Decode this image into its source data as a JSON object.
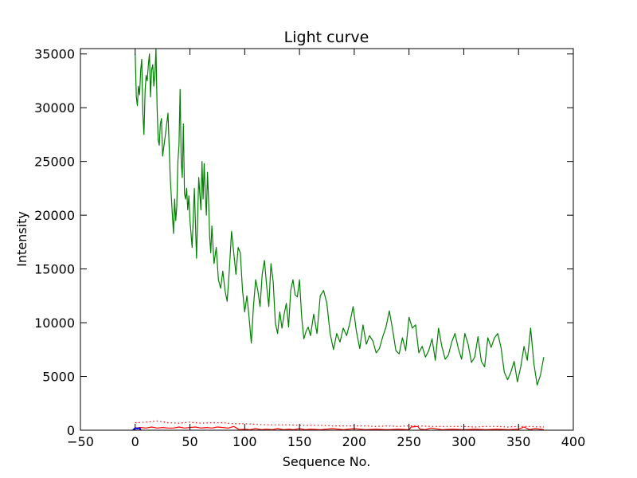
{
  "chart_data": {
    "type": "line",
    "title": "Light curve",
    "xlabel": "Sequence No.",
    "ylabel": "Intensity",
    "xlim": [
      -50,
      400
    ],
    "ylim": [
      0,
      35500
    ],
    "xticks": [
      -50,
      0,
      50,
      100,
      150,
      200,
      250,
      300,
      350,
      400
    ],
    "xtick_labels": [
      "−50",
      "0",
      "50",
      "100",
      "150",
      "200",
      "250",
      "300",
      "350",
      "400"
    ],
    "yticks": [
      0,
      5000,
      10000,
      15000,
      20000,
      25000,
      30000,
      35000
    ],
    "ytick_labels": [
      "0",
      "5000",
      "10000",
      "15000",
      "20000",
      "25000",
      "30000",
      "35000"
    ],
    "grid": false,
    "series": [
      {
        "color": "#008000",
        "style": "solid",
        "x": [
          0,
          1,
          2,
          3,
          4,
          5,
          6,
          7,
          8,
          9,
          10,
          11,
          12,
          13,
          14,
          15,
          16,
          17,
          18,
          19,
          20,
          21,
          22,
          23,
          24,
          25,
          27,
          30,
          32,
          34,
          35,
          36,
          37,
          38,
          39,
          40,
          41,
          42,
          43,
          44,
          45,
          46,
          47,
          48,
          49,
          50,
          52,
          54,
          56,
          58,
          60,
          61,
          62,
          63,
          64,
          65,
          66,
          67,
          68,
          69,
          70,
          72,
          74,
          76,
          78,
          80,
          82,
          84,
          86,
          88,
          90,
          92,
          94,
          96,
          98,
          100,
          102,
          104,
          106,
          108,
          110,
          112,
          114,
          116,
          118,
          120,
          122,
          124,
          126,
          128,
          130,
          132,
          134,
          136,
          138,
          140,
          142,
          144,
          146,
          148,
          150,
          152,
          154,
          156,
          158,
          160,
          163,
          166,
          169,
          172,
          175,
          178,
          181,
          184,
          187,
          190,
          193,
          196,
          199,
          202,
          205,
          208,
          211,
          214,
          217,
          220,
          223,
          226,
          229,
          232,
          235,
          238,
          241,
          244,
          247,
          250,
          253,
          256,
          259,
          262,
          265,
          268,
          271,
          274,
          277,
          280,
          283,
          286,
          289,
          292,
          295,
          298,
          301,
          304,
          307,
          310,
          313,
          316,
          319,
          322,
          325,
          328,
          331,
          334,
          337,
          340,
          343,
          346,
          349,
          352,
          355,
          358,
          361,
          364,
          367,
          370,
          373
        ],
        "values": [
          35000,
          31000,
          30200,
          32000,
          31200,
          33500,
          34500,
          29500,
          27500,
          31500,
          33000,
          32500,
          34000,
          35000,
          31000,
          33500,
          34000,
          32000,
          33000,
          35500,
          30000,
          27000,
          26500,
          28500,
          29000,
          25500,
          27000,
          29500,
          23500,
          20000,
          18300,
          21500,
          19500,
          20800,
          25000,
          26500,
          31700,
          25000,
          23500,
          28500,
          22000,
          21500,
          22500,
          20500,
          21800,
          19500,
          17000,
          22500,
          16000,
          23500,
          20500,
          25000,
          21500,
          24800,
          22000,
          20000,
          24000,
          21500,
          18000,
          16500,
          19000,
          15500,
          17000,
          14000,
          13200,
          14800,
          13000,
          12000,
          15000,
          18500,
          16500,
          14500,
          17000,
          16500,
          13000,
          11000,
          12500,
          10500,
          8100,
          11500,
          14000,
          13000,
          11500,
          14500,
          15800,
          13500,
          11500,
          15500,
          13800,
          10000,
          9000,
          11000,
          9500,
          10800,
          11800,
          9600,
          13000,
          14000,
          12600,
          12400,
          14000,
          10500,
          8500,
          9200,
          9600,
          8800,
          10800,
          9000,
          12500,
          13000,
          11800,
          9000,
          7500,
          9000,
          8200,
          9500,
          8800,
          10000,
          11500,
          9200,
          7600,
          9800,
          8000,
          8800,
          8300,
          7200,
          7600,
          8700,
          9600,
          11100,
          9400,
          7400,
          7100,
          8600,
          7400,
          10500,
          9500,
          9800,
          7200,
          7800,
          6800,
          7400,
          8500,
          6500,
          9500,
          7800,
          6600,
          7000,
          8200,
          9000,
          7600,
          6600,
          9000,
          8000,
          6300,
          6800,
          8700,
          6400,
          5900,
          8600,
          7700,
          8600,
          9000,
          7700,
          5400,
          4700,
          5400,
          6400,
          4500,
          5900,
          7800,
          6500,
          9500,
          6200,
          4200,
          5100,
          6800
        ]
      },
      {
        "color": "#ff0000",
        "style": "dotted",
        "x": [
          0,
          10,
          20,
          30,
          40,
          50,
          60,
          70,
          80,
          90,
          100,
          110,
          120,
          130,
          140,
          150,
          160,
          170,
          180,
          190,
          200,
          210,
          220,
          230,
          240,
          250,
          260,
          270,
          280,
          290,
          300,
          310,
          320,
          330,
          340,
          350,
          360,
          373
        ],
        "values": [
          700,
          750,
          850,
          700,
          650,
          750,
          650,
          700,
          700,
          600,
          600,
          550,
          500,
          500,
          500,
          450,
          450,
          450,
          400,
          400,
          400,
          400,
          350,
          400,
          350,
          400,
          400,
          350,
          350,
          350,
          350,
          300,
          350,
          350,
          300,
          350,
          350,
          300
        ]
      },
      {
        "color": "#ff0000",
        "style": "solid",
        "x": [
          0,
          5,
          10,
          15,
          20,
          25,
          30,
          35,
          40,
          45,
          50,
          55,
          60,
          65,
          70,
          75,
          80,
          85,
          90,
          95,
          100,
          105,
          110,
          115,
          120,
          125,
          130,
          135,
          140,
          145,
          150,
          155,
          160,
          170,
          180,
          190,
          200,
          210,
          220,
          230,
          240,
          250,
          252,
          258,
          260,
          265,
          270,
          280,
          290,
          300,
          310,
          320,
          330,
          340,
          350,
          355,
          360,
          365,
          373
        ],
        "values": [
          200,
          250,
          200,
          300,
          200,
          250,
          200,
          200,
          300,
          200,
          250,
          300,
          200,
          250,
          200,
          300,
          250,
          200,
          350,
          50,
          100,
          50,
          150,
          50,
          100,
          50,
          150,
          50,
          100,
          50,
          150,
          50,
          100,
          50,
          150,
          50,
          150,
          50,
          100,
          50,
          100,
          50,
          300,
          350,
          100,
          50,
          200,
          50,
          100,
          50,
          100,
          50,
          100,
          50,
          100,
          300,
          50,
          150,
          50
        ]
      },
      {
        "color": "#0000ff",
        "style": "solid",
        "x": [
          -2,
          0,
          2,
          4,
          5
        ],
        "values": [
          0,
          200,
          150,
          200,
          0
        ]
      }
    ]
  }
}
